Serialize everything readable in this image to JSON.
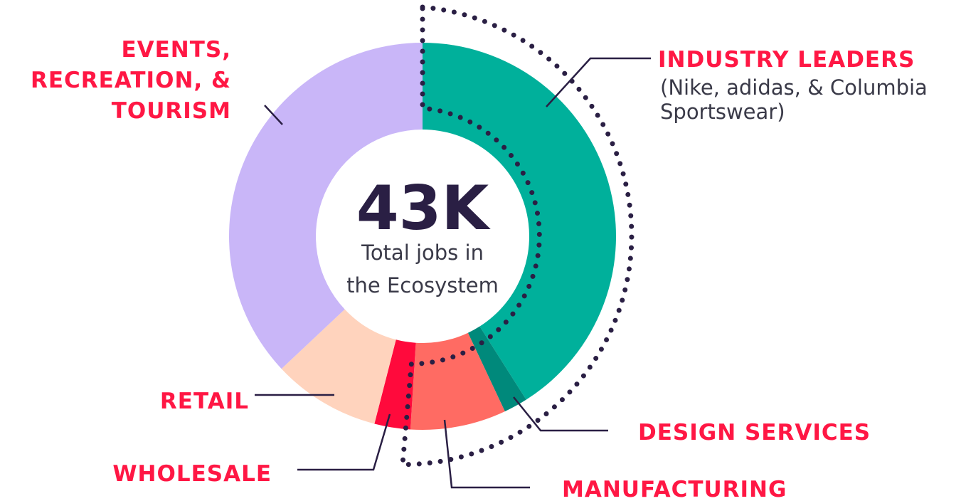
{
  "chart_data": {
    "type": "pie",
    "categories": [
      "INDUSTRY LEADERS",
      "DESIGN SERVICES",
      "MANUFACTURING",
      "WHOLESALE",
      "RETAIL",
      [
        "EVENTS,",
        "RECREATION, &",
        "TOURISM"
      ]
    ],
    "values": [
      41,
      2,
      8,
      3,
      9,
      37
    ],
    "colors": [
      "#00b09b",
      "#00897b",
      "#ff6b63",
      "#ff0a3c",
      "#ffd3bd",
      "#c9b6f8"
    ],
    "subtitle": [
      "(Nike, adidas, & Columbia",
      "Sportswear)"
    ],
    "center_value": "43K",
    "center_label": [
      "Total jobs in",
      "the Ecosystem"
    ]
  }
}
